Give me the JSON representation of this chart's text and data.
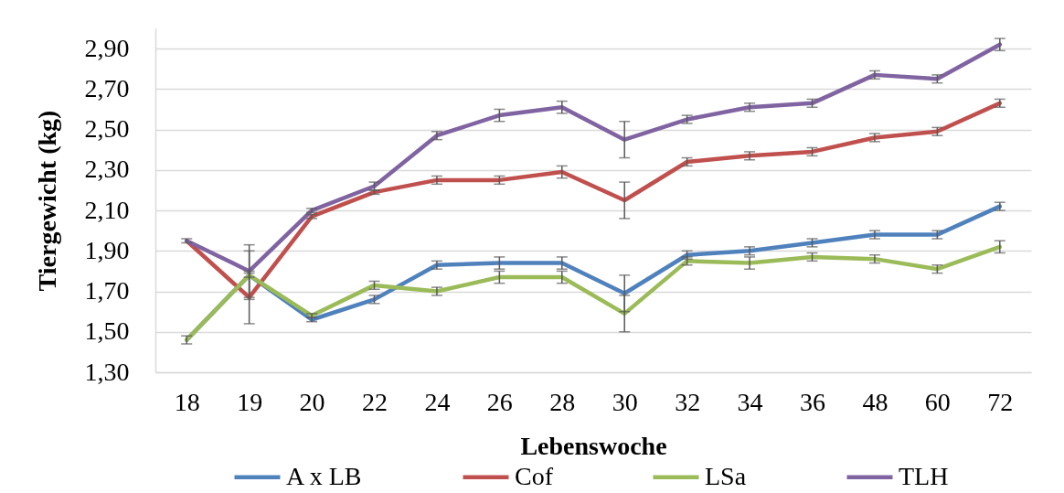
{
  "chart_data": {
    "type": "line",
    "xlabel": "Lebenswoche",
    "ylabel": "Tiergewicht (kg)",
    "categories": [
      "18",
      "19",
      "20",
      "22",
      "24",
      "26",
      "28",
      "30",
      "32",
      "34",
      "36",
      "48",
      "60",
      "72"
    ],
    "series": [
      {
        "name": "A x LB",
        "color": "#4f81bd",
        "values": [
          1.46,
          1.78,
          1.56,
          1.66,
          1.83,
          1.84,
          1.84,
          1.69,
          1.88,
          1.9,
          1.94,
          1.98,
          1.98,
          2.12
        ],
        "errors": [
          null,
          0.12,
          0.01,
          0.02,
          0.02,
          0.03,
          0.03,
          0.09,
          0.02,
          0.02,
          0.02,
          0.02,
          0.02,
          0.02
        ]
      },
      {
        "name": "Cof",
        "color": "#c0504d",
        "values": [
          1.95,
          1.67,
          2.07,
          2.19,
          2.25,
          2.25,
          2.29,
          2.15,
          2.34,
          2.37,
          2.39,
          2.46,
          2.49,
          2.63
        ],
        "errors": [
          null,
          0.13,
          0.01,
          0.01,
          0.02,
          0.02,
          0.03,
          0.09,
          0.02,
          0.02,
          0.02,
          0.02,
          0.02,
          0.02
        ]
      },
      {
        "name": "LSa",
        "color": "#9bbb59",
        "values": [
          1.46,
          1.78,
          1.58,
          1.73,
          1.7,
          1.77,
          1.77,
          1.59,
          1.85,
          1.84,
          1.87,
          1.86,
          1.81,
          1.92
        ],
        "errors": [
          0.02,
          0.01,
          0.01,
          0.02,
          0.02,
          0.03,
          0.03,
          0.09,
          0.02,
          0.03,
          0.02,
          0.02,
          0.02,
          0.03
        ]
      },
      {
        "name": "TLH",
        "color": "#8064a2",
        "values": [
          1.95,
          1.8,
          2.1,
          2.22,
          2.47,
          2.57,
          2.61,
          2.45,
          2.55,
          2.61,
          2.63,
          2.77,
          2.75,
          2.92
        ],
        "errors": [
          0.01,
          0.13,
          0.01,
          0.02,
          0.02,
          0.03,
          0.03,
          0.09,
          0.02,
          0.02,
          0.02,
          0.02,
          0.02,
          0.03
        ]
      }
    ],
    "ylim": [
      1.3,
      3.0
    ],
    "yticks": [
      {
        "value": 1.3,
        "label": "1,30"
      },
      {
        "value": 1.5,
        "label": "1,50"
      },
      {
        "value": 1.7,
        "label": "1,70"
      },
      {
        "value": 1.9,
        "label": "1,90"
      },
      {
        "value": 2.1,
        "label": "2,10"
      },
      {
        "value": 2.3,
        "label": "2,30"
      },
      {
        "value": 2.5,
        "label": "2,50"
      },
      {
        "value": 2.7,
        "label": "2,70"
      },
      {
        "value": 2.9,
        "label": "2,90"
      }
    ],
    "grid": "y",
    "legend": "bottom"
  }
}
